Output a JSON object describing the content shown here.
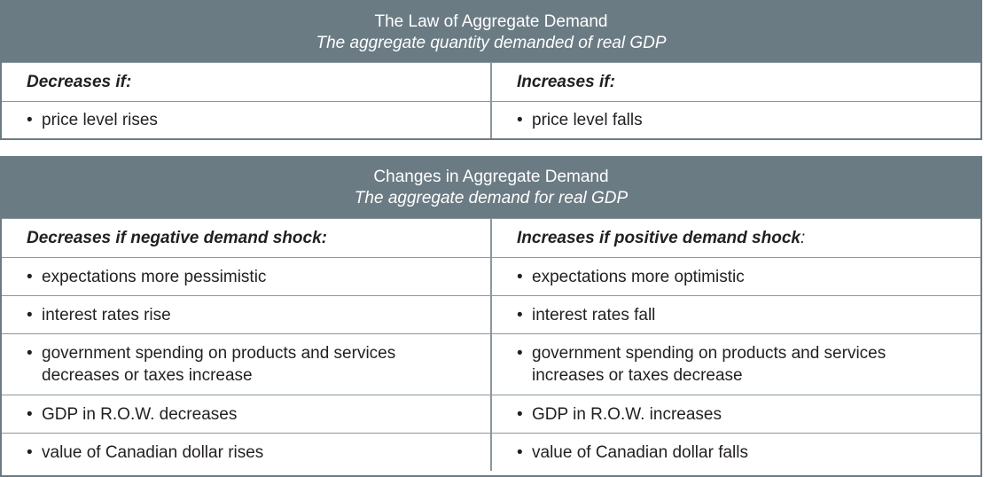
{
  "law_table": {
    "title": "The Law of Aggregate Demand",
    "subtitle": "The aggregate quantity demanded of real GDP",
    "left_header": "Decreases if:",
    "right_header": "Increases if:",
    "rows": [
      {
        "left": "price level rises",
        "right": "price level falls"
      }
    ]
  },
  "changes_table": {
    "title": "Changes in Aggregate Demand",
    "subtitle": "The aggregate demand for real GDP",
    "left_header": "Decreases if negative demand shock:",
    "right_header": "Increases if positive demand shock",
    "right_header_suffix": ":",
    "rows": [
      {
        "left": "expectations more pessimistic",
        "right": "expectations more optimistic"
      },
      {
        "left": "interest rates rise",
        "right": "interest rates fall"
      },
      {
        "left_line1": "government spending on products and services",
        "left_line2": "decreases or taxes increase",
        "right_line1": "government spending on products and services",
        "right_line2": "increases or taxes decrease"
      },
      {
        "left": "GDP in R.O.W. decreases",
        "right": "GDP in R.O.W. increases"
      },
      {
        "left": "value of Canadian dollar rises",
        "right": "value of Canadian dollar falls"
      }
    ]
  },
  "bullet": "•",
  "colors": {
    "header_bg": "#6b7b84",
    "header_text": "#ffffff",
    "body_text": "#231f20",
    "rule": "#8a979e"
  }
}
